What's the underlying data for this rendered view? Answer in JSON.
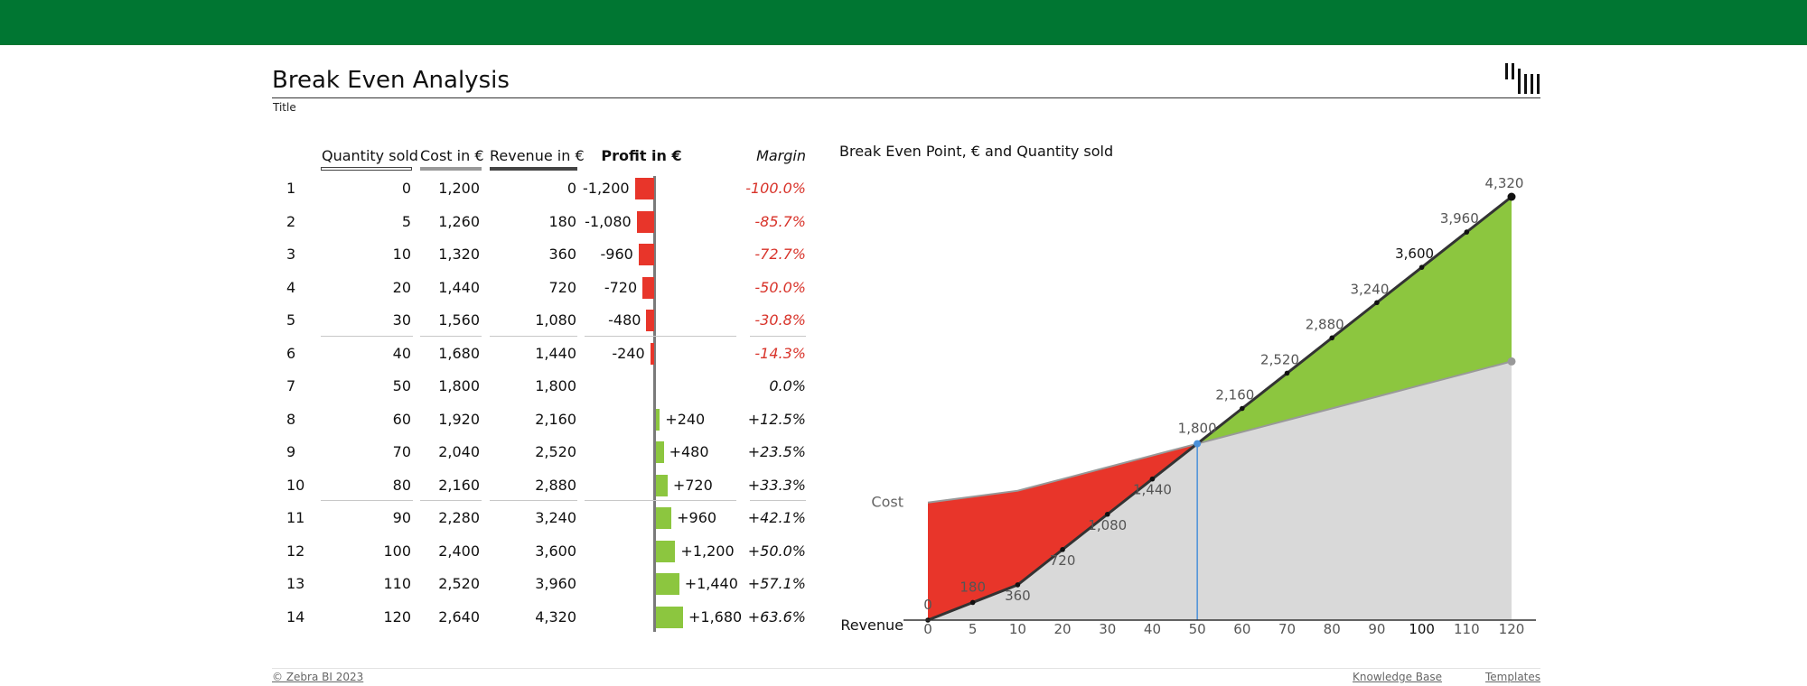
{
  "header": {
    "title": "Break Even Analysis",
    "subtitle": "Title"
  },
  "table": {
    "headers": {
      "quantity": "Quantity sold",
      "cost": "Cost in €",
      "revenue": "Revenue in €",
      "profit": "Profit in €",
      "margin": "Margin"
    },
    "rows": [
      {
        "idx": "1",
        "qty": "0",
        "cost": "1,200",
        "rev": "0",
        "profit": "-1,200",
        "margin": "-100.0%"
      },
      {
        "idx": "2",
        "qty": "5",
        "cost": "1,260",
        "rev": "180",
        "profit": "-1,080",
        "margin": "-85.7%"
      },
      {
        "idx": "3",
        "qty": "10",
        "cost": "1,320",
        "rev": "360",
        "profit": "-960",
        "margin": "-72.7%"
      },
      {
        "idx": "4",
        "qty": "20",
        "cost": "1,440",
        "rev": "720",
        "profit": "-720",
        "margin": "-50.0%"
      },
      {
        "idx": "5",
        "qty": "30",
        "cost": "1,560",
        "rev": "1,080",
        "profit": "-480",
        "margin": "-30.8%"
      },
      {
        "idx": "6",
        "qty": "40",
        "cost": "1,680",
        "rev": "1,440",
        "profit": "-240",
        "margin": "-14.3%"
      },
      {
        "idx": "7",
        "qty": "50",
        "cost": "1,800",
        "rev": "1,800",
        "profit": "",
        "margin": "0.0%"
      },
      {
        "idx": "8",
        "qty": "60",
        "cost": "1,920",
        "rev": "2,160",
        "profit": "+240",
        "margin": "+12.5%"
      },
      {
        "idx": "9",
        "qty": "70",
        "cost": "2,040",
        "rev": "2,520",
        "profit": "+480",
        "margin": "+23.5%"
      },
      {
        "idx": "10",
        "qty": "80",
        "cost": "2,160",
        "rev": "2,880",
        "profit": "+720",
        "margin": "+33.3%"
      },
      {
        "idx": "11",
        "qty": "90",
        "cost": "2,280",
        "rev": "3,240",
        "profit": "+960",
        "margin": "+42.1%"
      },
      {
        "idx": "12",
        "qty": "100",
        "cost": "2,400",
        "rev": "3,600",
        "profit": "+1,200",
        "margin": "+50.0%"
      },
      {
        "idx": "13",
        "qty": "110",
        "cost": "2,520",
        "rev": "3,960",
        "profit": "+1,440",
        "margin": "+57.1%"
      },
      {
        "idx": "14",
        "qty": "120",
        "cost": "2,640",
        "rev": "4,320",
        "profit": "+1,680",
        "margin": "+63.6%"
      }
    ],
    "profit_values": [
      -1200,
      -1080,
      -960,
      -720,
      -480,
      -240,
      0,
      240,
      480,
      720,
      960,
      1200,
      1440,
      1680
    ]
  },
  "chart_data": {
    "type": "area",
    "title": "Break Even Point, € and Quantity sold",
    "x": [
      0,
      5,
      10,
      20,
      30,
      40,
      50,
      60,
      70,
      80,
      90,
      100,
      110,
      120
    ],
    "x_tick_labels": [
      "0",
      "5",
      "10",
      "20",
      "30",
      "40",
      "50",
      "60",
      "70",
      "80",
      "90",
      "100",
      "110",
      "120"
    ],
    "series": [
      {
        "name": "Revenue",
        "values": [
          0,
          180,
          360,
          720,
          1080,
          1440,
          1800,
          2160,
          2520,
          2880,
          3240,
          3600,
          3960,
          4320
        ],
        "labels": [
          "0",
          "180",
          "360",
          "720",
          "1,080",
          "1,440",
          "1,800",
          "2,160",
          "2,520",
          "2,880",
          "3,240",
          "3,600",
          "3,960",
          "4,320"
        ]
      },
      {
        "name": "Cost",
        "values": [
          1200,
          1260,
          1320,
          1440,
          1560,
          1680,
          1800,
          1920,
          2040,
          2160,
          2280,
          2400,
          2520,
          2640
        ]
      }
    ],
    "break_even": {
      "quantity": 50,
      "value": 1800
    },
    "colors": {
      "loss": "#e8352a",
      "profit": "#8cc63f",
      "base": "#d9d9d9",
      "revenue_line": "#333333",
      "cost_line": "#999999",
      "break_even": "#4a90d9"
    }
  },
  "colors": {
    "header_bar": "#007632",
    "negative": "#e8352a",
    "positive": "#8cc63f",
    "negative_text": "#d8332a"
  },
  "footer": {
    "copyright": "© Zebra BI 2023",
    "link1": "Knowledge Base",
    "link2": "Templates"
  }
}
